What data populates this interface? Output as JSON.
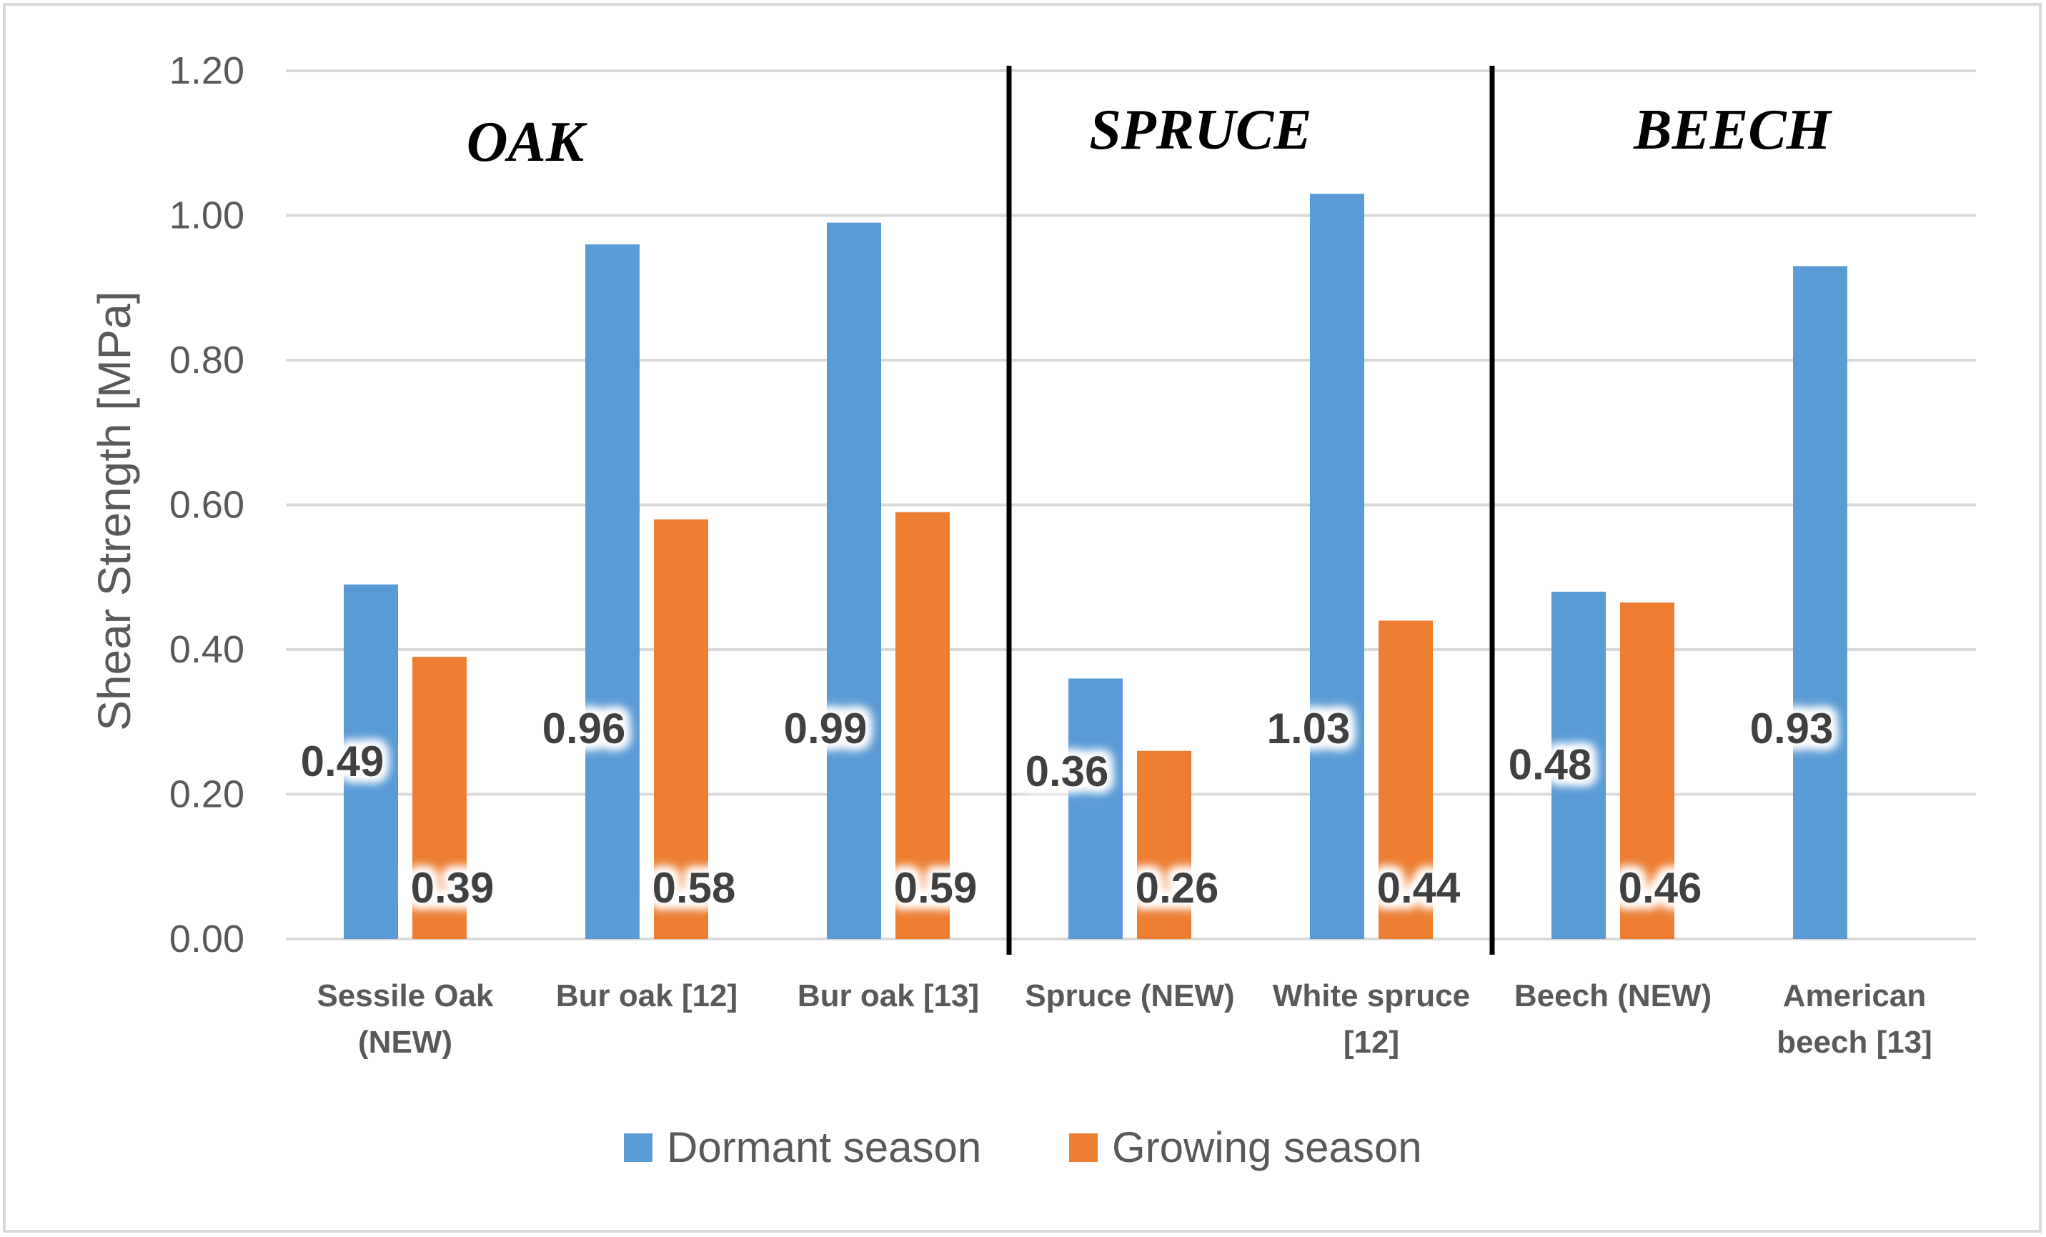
{
  "chart_data": {
    "type": "bar",
    "ylabel": "Shear Strength [MPa]",
    "ylim": [
      0,
      1.2
    ],
    "yticks": [
      "0.00",
      "0.20",
      "0.40",
      "0.60",
      "0.80",
      "1.00",
      "1.20"
    ],
    "grid": true,
    "categories": [
      [
        "Sessile Oak",
        "(NEW)"
      ],
      [
        "Bur oak [12]"
      ],
      [
        "Bur oak [13]"
      ],
      [
        "Spruce (NEW)"
      ],
      [
        "White spruce",
        "[12]"
      ],
      [
        "Beech (NEW)"
      ],
      [
        "American",
        "beech [13]"
      ]
    ],
    "series": [
      {
        "name": "Dormant season",
        "color": "#5b9bd5",
        "values": [
          0.49,
          0.96,
          0.99,
          0.36,
          1.03,
          0.48,
          0.93
        ],
        "labels": [
          "0.49",
          "0.96",
          "0.99",
          "0.36",
          "1.03",
          "0.48",
          "0.93"
        ]
      },
      {
        "name": "Growing season",
        "color": "#ed7d31",
        "values": [
          0.39,
          0.58,
          0.59,
          0.26,
          0.44,
          0.465,
          null
        ],
        "labels": [
          "0.39",
          "0.58",
          "0.59",
          "0.26",
          "0.44",
          "0.46",
          null
        ]
      }
    ],
    "groups": [
      {
        "label": "OAK",
        "first": 0,
        "last": 2
      },
      {
        "label": "SPRUCE",
        "first": 3,
        "last": 4
      },
      {
        "label": "BEECH",
        "first": 5,
        "last": 6
      }
    ],
    "legend_position": "bottom"
  }
}
